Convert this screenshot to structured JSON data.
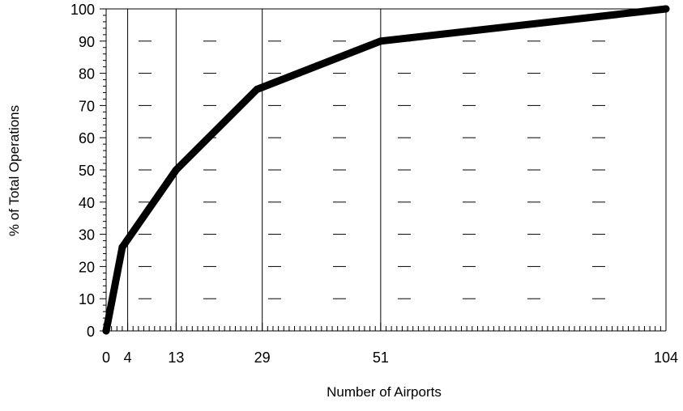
{
  "chart_data": {
    "type": "line",
    "title": "",
    "xlabel": "Number of Airports",
    "ylabel": "% of Total Operations",
    "xlim": [
      0,
      104
    ],
    "ylim": [
      0,
      100
    ],
    "x_tick_labels": [
      "0",
      "4",
      "13",
      "29",
      "51",
      "104"
    ],
    "y_tick_labels": [
      "0",
      "10",
      "20",
      "30",
      "40",
      "50",
      "60",
      "70",
      "80",
      "90",
      "100"
    ],
    "x_tick_values": [
      0,
      4,
      13,
      29,
      51,
      104
    ],
    "y_tick_values": [
      0,
      10,
      20,
      30,
      40,
      50,
      60,
      70,
      80,
      90,
      100
    ],
    "vertical_reference_lines": [
      4,
      13,
      29,
      51
    ],
    "grid": "dashed horizontal segments",
    "legend": "none",
    "series": [
      {
        "x": [
          0,
          3,
          13,
          28,
          51,
          104
        ],
        "y": [
          0,
          26,
          50,
          75,
          90,
          100
        ],
        "color": "#000000"
      }
    ]
  }
}
